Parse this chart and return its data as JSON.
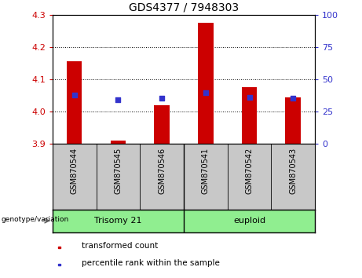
{
  "title": "GDS4377 / 7948303",
  "samples": [
    "GSM870544",
    "GSM870545",
    "GSM870546",
    "GSM870541",
    "GSM870542",
    "GSM870543"
  ],
  "bar_bottoms": [
    3.9,
    3.9,
    3.9,
    3.9,
    3.9,
    3.9
  ],
  "bar_tops": [
    4.155,
    3.91,
    4.02,
    4.275,
    4.075,
    4.045
  ],
  "blue_y": [
    4.052,
    4.038,
    4.043,
    4.058,
    4.045,
    4.043
  ],
  "ylim_left": [
    3.9,
    4.3
  ],
  "yticks_left": [
    3.9,
    4.0,
    4.1,
    4.2,
    4.3
  ],
  "yticks_right": [
    0,
    25,
    50,
    75,
    100
  ],
  "bar_color": "#cc0000",
  "blue_color": "#3333cc",
  "left_tick_color": "#cc0000",
  "right_tick_color": "#3333cc",
  "group_labels": [
    "Trisomy 21",
    "euploid"
  ],
  "group_color": "#90ee90",
  "legend_red": "transformed count",
  "legend_blue": "percentile rank within the sample",
  "bg_color": "#c8c8c8",
  "plot_bg": "#ffffff",
  "bar_width": 0.35
}
